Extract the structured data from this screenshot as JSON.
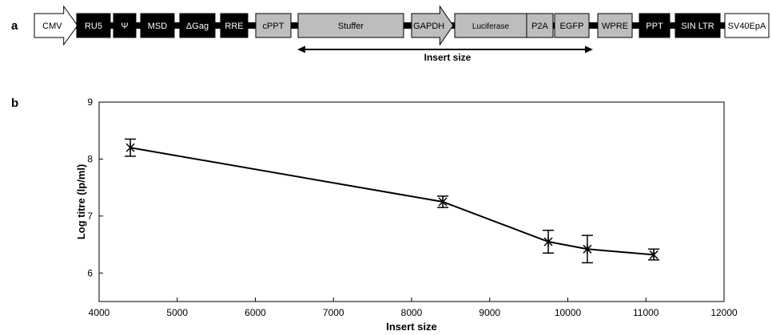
{
  "panel_a": {
    "letter": "a",
    "insert_label": "Insert size",
    "elements": [
      {
        "label": "CMV",
        "style": "white",
        "shape": "arrow"
      },
      {
        "label": "RU5",
        "style": "black"
      },
      {
        "label": "Ψ",
        "style": "black"
      },
      {
        "label": "MSD",
        "style": "black"
      },
      {
        "label": "ΔGag",
        "style": "black"
      },
      {
        "label": "RRE",
        "style": "black"
      },
      {
        "label": "cPPT",
        "style": "gray"
      },
      {
        "label": "Stuffer",
        "style": "gray"
      },
      {
        "label": "GAPDH",
        "style": "gray",
        "shape": "arrow"
      },
      {
        "label": "Luciferase",
        "style": "gray"
      },
      {
        "label": "P2A",
        "style": "gray"
      },
      {
        "label": "EGFP",
        "style": "gray"
      },
      {
        "label": "WPRE",
        "style": "gray"
      },
      {
        "label": "PPT",
        "style": "black"
      },
      {
        "label": "SIN LTR",
        "style": "black"
      },
      {
        "label": "SV40EpA",
        "style": "white"
      }
    ]
  },
  "panel_b": {
    "letter": "b"
  },
  "chart_data": {
    "type": "line",
    "title": "",
    "xlabel": "Insert size",
    "ylabel": "Log titre (lp/ml)",
    "xlim": [
      4000,
      12000
    ],
    "ylim": [
      5.5,
      9
    ],
    "x_ticks": [
      4000,
      5000,
      6000,
      7000,
      8000,
      9000,
      10000,
      11000,
      12000
    ],
    "y_ticks": [
      6,
      7,
      8,
      9
    ],
    "grid": false,
    "marker": "star",
    "series": [
      {
        "x": [
          4400,
          8400,
          9750,
          10250,
          11100
        ],
        "y": [
          8.2,
          7.25,
          6.55,
          6.42,
          6.32
        ],
        "error_low": [
          8.05,
          7.15,
          6.35,
          6.18,
          6.23
        ],
        "error_high": [
          8.35,
          7.35,
          6.75,
          6.66,
          6.42
        ]
      }
    ]
  }
}
